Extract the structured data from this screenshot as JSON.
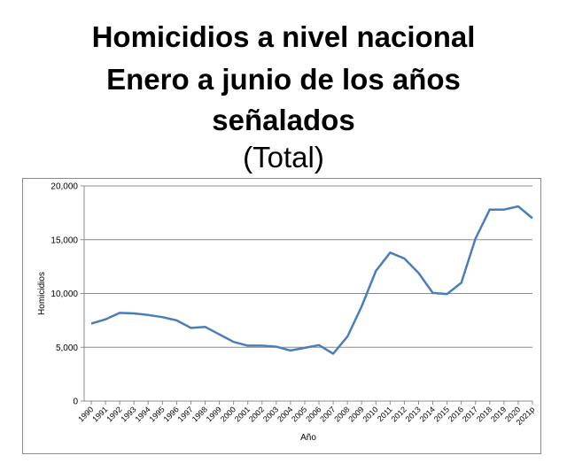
{
  "chart_data": {
    "type": "line",
    "title_lines": [
      "Homicidios a nivel nacional",
      "Enero a junio de los años",
      "señalados"
    ],
    "subtitle": "(Total)",
    "xlabel": "Año",
    "ylabel": "Homicidios",
    "ylim": [
      0,
      20000
    ],
    "yticks": [
      "0",
      "5,000",
      "10,000",
      "15,000",
      "20,000"
    ],
    "grid": true,
    "line_color": "#4a7ebb",
    "x": [
      "1990",
      "1991",
      "1992",
      "1993",
      "1994",
      "1995",
      "1996",
      "1997",
      "1998",
      "1999",
      "2000",
      "2001",
      "2002",
      "2003",
      "2004",
      "2005",
      "2006",
      "2007",
      "2008",
      "2009",
      "2010",
      "2011",
      "2012",
      "2013",
      "2014",
      "2015",
      "2016",
      "2017",
      "2018",
      "2019",
      "2020",
      "2021p"
    ],
    "series": [
      {
        "values": [
          7200,
          7600,
          8200,
          8150,
          8000,
          7800,
          7500,
          6800,
          6900,
          6200,
          5500,
          5150,
          5150,
          5050,
          4700,
          4950,
          5200,
          4400,
          6000,
          8800,
          12100,
          13800,
          13250,
          11900,
          10050,
          9950,
          11000,
          15100,
          17800,
          17800,
          18100,
          17000
        ]
      }
    ]
  }
}
